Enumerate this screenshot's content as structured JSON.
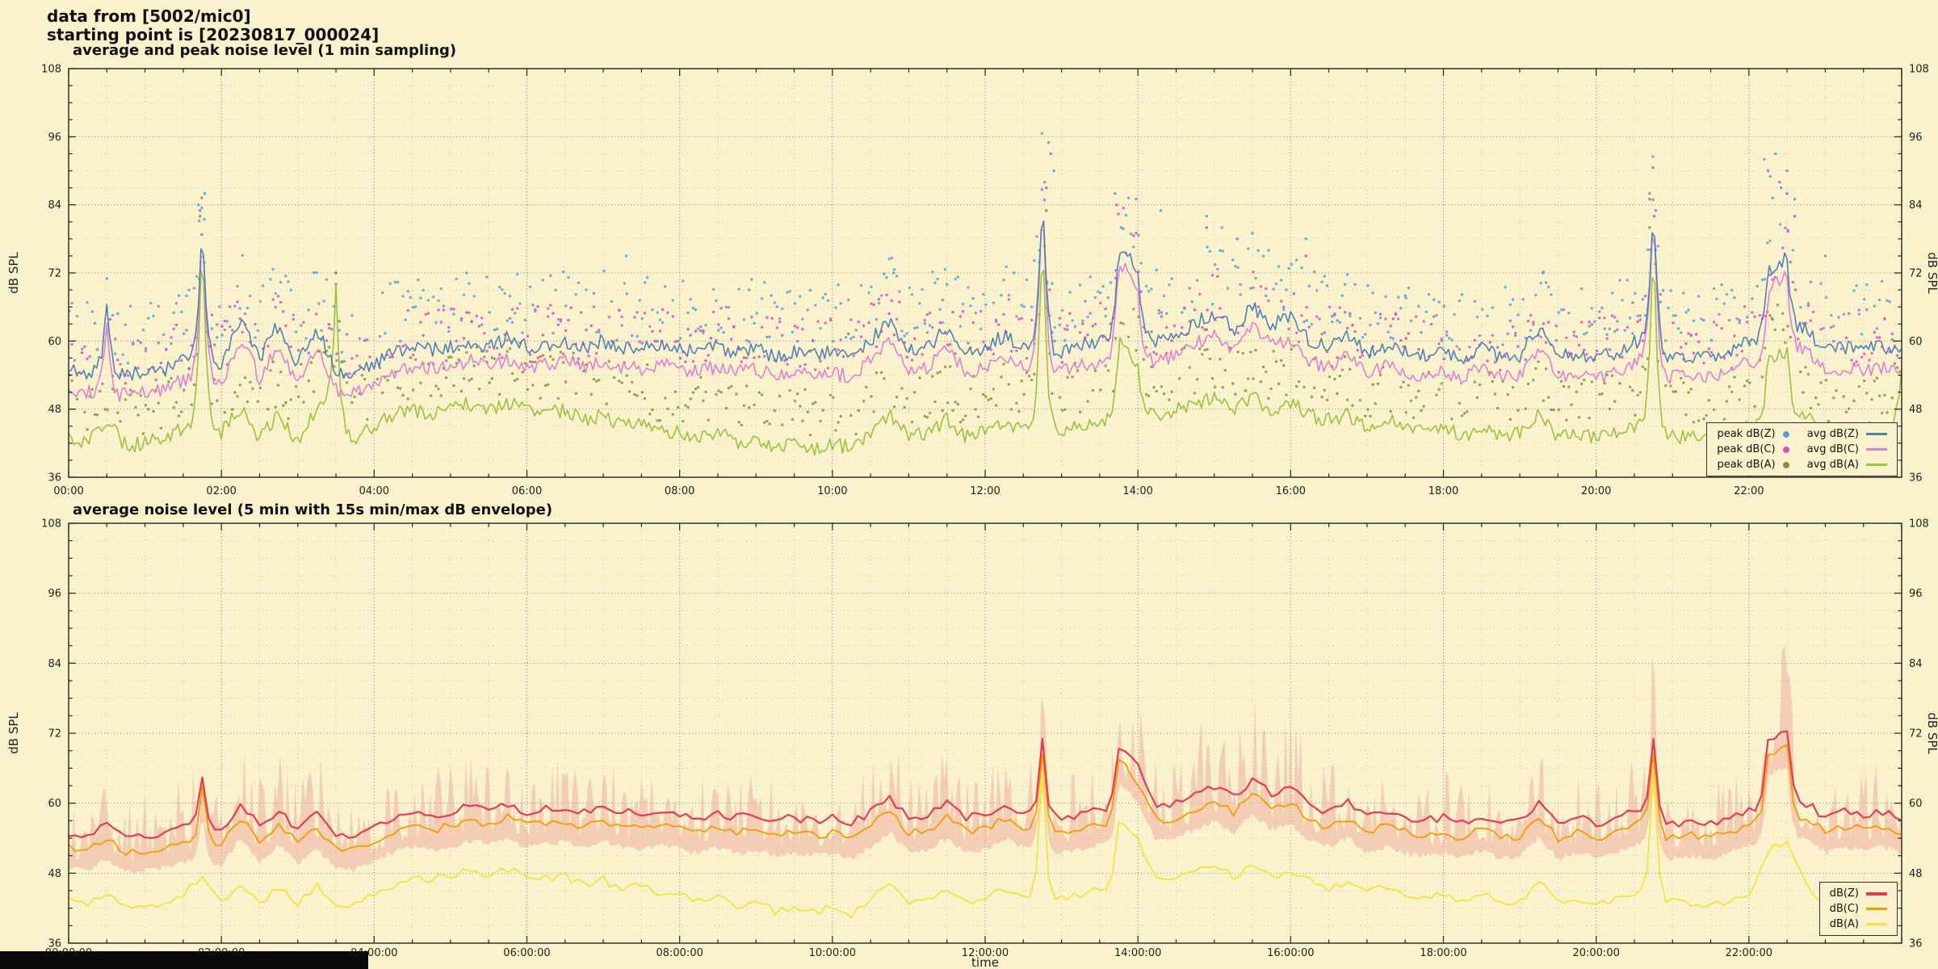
{
  "header": {
    "line1": "data from [5002/mic0]",
    "line2": "starting point is [20230817_000024]"
  },
  "colors": {
    "background": "#faf2cd",
    "grid_minor": "#9a9a9a",
    "grid_major": "#666666",
    "frame": "#222222"
  },
  "chart_data": [
    {
      "type": "line+scatter",
      "title": "average and peak noise level (1 min sampling)",
      "xlabel": "time",
      "ylabel": "dB SPL",
      "ylim": [
        36,
        108
      ],
      "yticks": [
        36,
        48,
        60,
        72,
        84,
        96,
        108
      ],
      "xlim_hours": [
        0,
        24
      ],
      "x_start_hours": 0,
      "x_step_hours": 0.25,
      "xtick_labels": [
        "00:00",
        "02:00",
        "04:00",
        "06:00",
        "08:00",
        "10:00",
        "12:00",
        "14:00",
        "16:00",
        "18:00",
        "20:00",
        "22:00"
      ],
      "grid": true,
      "legend_position": "lower right",
      "series": [
        {
          "name": "avg dB(Z)",
          "type": "line",
          "color": "#4f81b4",
          "values": [
            55,
            54.5,
            66,
            54,
            54.5,
            55,
            56.5,
            82,
            56,
            64,
            57,
            63,
            56,
            62,
            55,
            54,
            56,
            58,
            59,
            58.5,
            59,
            60,
            59,
            60.5,
            59,
            59.5,
            60,
            59,
            60,
            59,
            58.5,
            59.5,
            58.5,
            58,
            59,
            58,
            58.5,
            57.5,
            58,
            57.5,
            58,
            57,
            60,
            64,
            58,
            59,
            62,
            58,
            59,
            61,
            59,
            87,
            58,
            59,
            60,
            77,
            73,
            60,
            61,
            63,
            65,
            62,
            66,
            63,
            64,
            60,
            59,
            61,
            58,
            59,
            58,
            57.5,
            58,
            57,
            59,
            57,
            57.5,
            62,
            57,
            58,
            57,
            58,
            60,
            86,
            57,
            57.5,
            57,
            58,
            60,
            72,
            75,
            62,
            58,
            59,
            58.5,
            59,
            58
          ]
        },
        {
          "name": "avg dB(C)",
          "type": "line",
          "color": "#df7fd3",
          "values": [
            51.5,
            51,
            62,
            50.5,
            51,
            51.5,
            53,
            81,
            52.5,
            60.5,
            53.5,
            59.5,
            52.5,
            58.5,
            51.5,
            50.5,
            52.5,
            54.5,
            55.5,
            55,
            55.5,
            56.5,
            55.5,
            57,
            55.5,
            56,
            56.5,
            55.5,
            56.5,
            55.5,
            55,
            56,
            55,
            54.5,
            55.5,
            54.5,
            55,
            54,
            54.5,
            54,
            54.5,
            53.5,
            56.5,
            60.5,
            54.5,
            55.5,
            58.5,
            54.5,
            55.5,
            57.5,
            55.5,
            86,
            54.5,
            55.5,
            56.5,
            74,
            70,
            56.5,
            57.5,
            59.5,
            61.5,
            58.5,
            62.5,
            59.5,
            60.5,
            56.5,
            55.5,
            57.5,
            54.5,
            55.5,
            54.5,
            54,
            54.5,
            53.5,
            55.5,
            53.5,
            54,
            58.5,
            53.5,
            54.5,
            53.5,
            54.5,
            56.5,
            85,
            53.5,
            54,
            53.5,
            54.5,
            56.5,
            69,
            72,
            58.5,
            54.5,
            55.5,
            55,
            55.5,
            54.5
          ]
        },
        {
          "name": "avg dB(A)",
          "type": "line",
          "color": "#9cc13c",
          "values": [
            43,
            42,
            46,
            41.5,
            42,
            43,
            44.5,
            80,
            44,
            48,
            43,
            47,
            42,
            48,
            70,
            43,
            45,
            47,
            48,
            47,
            48,
            49,
            48,
            49,
            48,
            47,
            48,
            46,
            47,
            45,
            46,
            44,
            44,
            43,
            44,
            42,
            43,
            41,
            42,
            41,
            42,
            41,
            44,
            47,
            43,
            44,
            46,
            43,
            44,
            46,
            44,
            80,
            44,
            45,
            46,
            60,
            56,
            47,
            48,
            49,
            50,
            48,
            50,
            48,
            49,
            47,
            46,
            47,
            45,
            46,
            45,
            44,
            45,
            43,
            45,
            43,
            44,
            47,
            43,
            44,
            43,
            44,
            45,
            78,
            43,
            43,
            42,
            43,
            45,
            57,
            58,
            47,
            43,
            44,
            43,
            44,
            56
          ]
        },
        {
          "name": "peak dB(Z)",
          "type": "scatter",
          "color": "#55a0d9",
          "base_index": 0,
          "offset_db": 7,
          "spread_db": 5.5,
          "outliers": [
            [
              0.5,
              71
            ],
            [
              1.7,
              84
            ],
            [
              1.78,
              86
            ],
            [
              3.5,
              72
            ],
            [
              7.3,
              75
            ],
            [
              9.2,
              68
            ],
            [
              10.8,
              72
            ],
            [
              11.5,
              70
            ],
            [
              12.78,
              88
            ],
            [
              12.83,
              95
            ],
            [
              12.9,
              90
            ],
            [
              13.7,
              86
            ],
            [
              13.78,
              80
            ],
            [
              14.3,
              83
            ],
            [
              14.9,
              82
            ],
            [
              15.1,
              80
            ],
            [
              15.5,
              79
            ],
            [
              16.2,
              78
            ],
            [
              17.5,
              68
            ],
            [
              19.3,
              72
            ],
            [
              20.7,
              86
            ],
            [
              20.78,
              83
            ],
            [
              22.2,
              92
            ],
            [
              22.28,
              89
            ],
            [
              22.35,
              93
            ],
            [
              22.42,
              87
            ],
            [
              22.5,
              90
            ],
            [
              22.6,
              85
            ],
            [
              23.0,
              75
            ]
          ]
        },
        {
          "name": "peak dB(C)",
          "type": "scatter",
          "color": "#d44fc4",
          "base_index": 1,
          "offset_db": 5.5,
          "spread_db": 5,
          "outliers": [
            [
              1.72,
              83
            ],
            [
              3.5,
              70
            ],
            [
              12.8,
              87
            ],
            [
              12.86,
              93
            ],
            [
              13.72,
              84
            ],
            [
              14.9,
              80
            ],
            [
              15.3,
              78
            ],
            [
              16.2,
              75
            ],
            [
              20.7,
              85
            ],
            [
              20.76,
              82
            ],
            [
              22.25,
              90
            ],
            [
              22.4,
              88
            ],
            [
              22.5,
              86
            ],
            [
              22.6,
              82
            ]
          ]
        },
        {
          "name": "peak dB(A)",
          "type": "scatter",
          "color": "#7e943a",
          "base_index": 2,
          "offset_db": 6,
          "spread_db": 4.5,
          "outliers": [
            [
              1.72,
              82
            ],
            [
              3.5,
              72
            ],
            [
              12.8,
              83
            ],
            [
              13.7,
              66
            ],
            [
              14.9,
              62
            ],
            [
              20.7,
              80
            ],
            [
              22.3,
              64
            ],
            [
              22.45,
              62
            ],
            [
              23.9,
              60
            ]
          ]
        }
      ]
    },
    {
      "type": "line+band",
      "title": "average noise level (5 min with 15s min/max dB envelope)",
      "xlabel": "time",
      "ylabel": "dB SPL",
      "ylim": [
        36,
        108
      ],
      "yticks": [
        36,
        48,
        60,
        72,
        84,
        96,
        108
      ],
      "xlim_hours": [
        0,
        24
      ],
      "x_start_hours": 0,
      "x_step_hours": 0.25,
      "xtick_labels": [
        "00:00:00",
        "02:00:00",
        "04:00:00",
        "06:00:00",
        "08:00:00",
        "10:00:00",
        "12:00:00",
        "14:00:00",
        "16:00:00",
        "18:00:00",
        "20:00:00",
        "22:00:00"
      ],
      "grid": true,
      "legend_position": "lower right",
      "series": [
        {
          "name": "dB(Z)",
          "type": "line",
          "color": "#e23b55",
          "values": [
            55,
            54.5,
            56.5,
            54,
            54.5,
            55,
            56,
            65,
            55.5,
            60,
            56,
            59,
            55.5,
            58,
            55,
            54.5,
            56,
            57.5,
            58.5,
            58,
            58.5,
            59.5,
            59,
            60,
            58.5,
            59,
            59.5,
            58.5,
            59.5,
            58.5,
            58,
            59,
            58,
            57.5,
            58.5,
            57.5,
            58,
            57,
            57.5,
            57,
            57.5,
            56.5,
            58.5,
            61,
            57.5,
            58,
            60,
            57.5,
            58,
            60,
            58.5,
            71,
            57.5,
            58,
            59,
            70,
            66,
            59.5,
            60,
            61.5,
            63,
            61,
            64,
            61.5,
            62.5,
            59.5,
            58.5,
            60,
            57.5,
            58.5,
            57.5,
            57,
            57.5,
            56.5,
            58,
            56.5,
            57,
            60,
            56.5,
            57.5,
            56.5,
            57.5,
            59,
            71,
            56.5,
            57,
            56.5,
            57.5,
            59,
            71,
            73,
            60,
            57.5,
            58.5,
            58,
            58.5,
            57.5
          ]
        },
        {
          "name": "dB(C)",
          "type": "line",
          "color": "#f59b00",
          "values": [
            52.5,
            52,
            54,
            51.5,
            52,
            52.5,
            53.5,
            62.5,
            53,
            57.5,
            53.5,
            56.5,
            53,
            55.5,
            52.5,
            52,
            53.5,
            55,
            56,
            55.5,
            56,
            57,
            56.5,
            57.5,
            56,
            56.5,
            57,
            56,
            57,
            56,
            55.5,
            56.5,
            55.5,
            55,
            56,
            55,
            55.5,
            54.5,
            55,
            54.5,
            55,
            54,
            56,
            58.5,
            55,
            55.5,
            57.5,
            55,
            55.5,
            57.5,
            56,
            68.5,
            55,
            55.5,
            56.5,
            67.5,
            63.5,
            57,
            57.5,
            59,
            60.5,
            58.5,
            61.5,
            59,
            60,
            57,
            56,
            57.5,
            55,
            56,
            55,
            54.5,
            55,
            54,
            55.5,
            54,
            54.5,
            57.5,
            54,
            55,
            54,
            55,
            56.5,
            68.5,
            54,
            54.5,
            54,
            55,
            56.5,
            68,
            70,
            57.5,
            55,
            56,
            55.5,
            56,
            55
          ]
        },
        {
          "name": "dB(A)",
          "type": "line",
          "color": "#f3e33d",
          "values": [
            43.5,
            43,
            44.5,
            42,
            42.5,
            43,
            44,
            48,
            43.5,
            46,
            43,
            45.5,
            42.5,
            46,
            43,
            42.5,
            44.5,
            46,
            47.5,
            47,
            47.5,
            48.5,
            48,
            48.5,
            47.5,
            47,
            47.5,
            46,
            47,
            45,
            46,
            44.5,
            44,
            43.5,
            44,
            42.5,
            43,
            41.5,
            42,
            41.5,
            42,
            41,
            43.5,
            46,
            43,
            43.5,
            45.5,
            43,
            43.5,
            45.5,
            44,
            65,
            43.5,
            44.5,
            45.5,
            57,
            54,
            46.5,
            47.5,
            48.5,
            49.5,
            47.5,
            49.5,
            47.5,
            48.5,
            46.5,
            45.5,
            46.5,
            44.5,
            45.5,
            44.5,
            44,
            44.5,
            43,
            44.5,
            43,
            43.5,
            46.5,
            43,
            43.5,
            43,
            43.5,
            44.5,
            65,
            43,
            43,
            42.5,
            43,
            44.5,
            52,
            53,
            46,
            43,
            43.5,
            43,
            43.5,
            47
          ]
        }
      ],
      "envelope": {
        "color": "#eba79b",
        "opacity": 0.5,
        "max": [
          60,
          59,
          64,
          58,
          59,
          60,
          62,
          78,
          61,
          68,
          62,
          66,
          61,
          67,
          60,
          59,
          61,
          63,
          64,
          63,
          64,
          66,
          64,
          66,
          64,
          64,
          65,
          63,
          65,
          63,
          63,
          64,
          63,
          62,
          63,
          62,
          63,
          61,
          62,
          61,
          62,
          61,
          64,
          70,
          62,
          63,
          67,
          62,
          63,
          66,
          64,
          90,
          62,
          63,
          65,
          85,
          80,
          66,
          67,
          70,
          74,
          70,
          76,
          71,
          73,
          67,
          65,
          68,
          63,
          64,
          63,
          62,
          63,
          61,
          64,
          61,
          62,
          68,
          61,
          62,
          61,
          62,
          65,
          90,
          61,
          62,
          61,
          62,
          65,
          88,
          89,
          68,
          62,
          64,
          63,
          64,
          62
        ],
        "min": [
          50.5,
          50,
          52,
          49.5,
          50,
          50.5,
          51.5,
          60.5,
          51,
          55.5,
          51.5,
          54.5,
          51,
          53.5,
          50.5,
          50,
          51.5,
          53,
          54,
          53.5,
          54,
          55,
          54.5,
          55.5,
          54,
          54.5,
          55,
          54,
          55,
          54,
          53.5,
          54.5,
          53.5,
          53,
          54,
          53,
          53.5,
          52.5,
          53,
          52.5,
          53,
          52,
          54,
          56.5,
          53,
          53.5,
          55.5,
          53,
          53.5,
          55.5,
          54,
          66.5,
          53,
          53.5,
          54.5,
          65.5,
          61.5,
          55,
          55.5,
          57,
          58.5,
          56.5,
          59.5,
          57,
          58,
          55,
          54,
          55.5,
          53,
          54,
          53,
          52.5,
          53,
          52,
          53.5,
          52,
          52.5,
          55.5,
          52,
          53,
          52,
          53,
          54.5,
          66.5,
          52,
          52.5,
          52,
          53,
          54.5,
          66,
          68,
          55.5,
          53,
          54,
          53.5,
          54,
          53
        ]
      }
    }
  ]
}
